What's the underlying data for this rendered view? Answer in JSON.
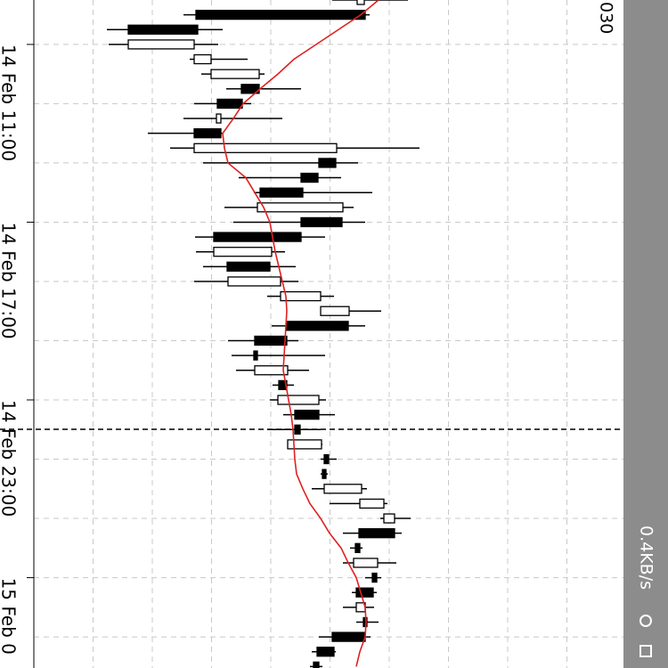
{
  "chart_data": {
    "type": "candlestick",
    "price_label": "030",
    "xlim": [
      0,
      700
    ],
    "open": [
      401,
      410,
      222,
      144,
      218,
      237,
      291,
      272,
      243,
      248,
      218,
      377,
      357,
      340,
      289,
      384,
      338,
      240,
      303,
      256,
      315,
      360,
      391,
      322,
      289,
      286,
      322,
      312,
      358,
      337,
      323,
      369,
      366,
      364,
      404,
      431,
      443,
      404,
      397,
      423,
      419,
      400,
      412,
      410,
      375,
      358
    ],
    "close": [
      409,
      220,
      144,
      218,
      237,
      291,
      271,
      244,
      248,
      218,
      378,
      358,
      338,
      292,
      385,
      338,
      240,
      305,
      255,
      315,
      360,
      392,
      322,
      286,
      285,
      323,
      313,
      358,
      331,
      331,
      361,
      364,
      362,
      406,
      431,
      443,
      403,
      399,
      424,
      418,
      400,
      410,
      408,
      373,
      356,
      352
    ],
    "low": [
      373,
      206,
      120,
      122,
      213,
      226,
      254,
      218,
      206,
      166,
      191,
      228,
      268,
      285,
      252,
      262,
      219,
      220,
      228,
      218,
      300,
      360,
      305,
      256,
      260,
      265,
      306,
      303,
      318,
      300,
      323,
      360,
      360,
      350,
      370,
      427,
      385,
      393,
      385,
      410,
      395,
      385,
      400,
      358,
      350,
      348
    ],
    "high": [
      458,
      415,
      250,
      245,
      278,
      297,
      338,
      282,
      317,
      250,
      471,
      402,
      383,
      418,
      397,
      410,
      365,
      320,
      332,
      335,
      375,
      428,
      410,
      335,
      365,
      347,
      330,
      366,
      376,
      360,
      362,
      378,
      368,
      412,
      435,
      461,
      451,
      407,
      445,
      428,
      423,
      420,
      425,
      416,
      377,
      362
    ],
    "ma": {
      "color": "#e02020",
      "values": [
        425,
        405,
        380,
        355,
        330,
        312,
        292,
        273,
        262,
        250,
        252,
        256,
        276,
        286,
        296,
        303,
        306,
        309,
        313,
        317,
        321,
        322,
        321,
        320,
        319,
        318,
        321,
        324,
        327,
        329,
        330,
        331,
        333,
        340,
        348,
        360,
        370,
        383,
        391,
        400,
        405,
        410,
        411,
        410,
        404,
        400
      ]
    },
    "yticks": [
      {
        "value": 3,
        "label": "14 Feb 11:00"
      },
      {
        "value": 15,
        "label": "14 Feb 17:00"
      },
      {
        "value": 27,
        "label": "14 Feb 23:00"
      },
      {
        "value": 39,
        "label": "15 Feb 0"
      }
    ],
    "grid": true
  },
  "status_bar": {
    "speed": "0.4KB/s"
  }
}
